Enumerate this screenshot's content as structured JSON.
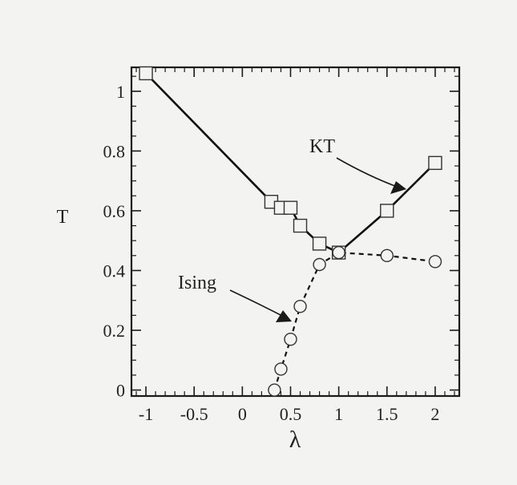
{
  "chart_data": {
    "type": "line",
    "xlabel": "λ",
    "ylabel": "T",
    "xlim": [
      -1.15,
      2.25
    ],
    "ylim": [
      -0.02,
      1.08
    ],
    "x_ticks": [
      -1,
      -0.5,
      0,
      0.5,
      1,
      1.5,
      2
    ],
    "x_tick_labels": [
      "-1",
      "-0.5",
      "0",
      "0.5",
      "1",
      "1.5",
      "2"
    ],
    "y_ticks": [
      0,
      0.2,
      0.4,
      0.6,
      0.8,
      1
    ],
    "y_tick_labels": [
      "0",
      "0.2",
      "0.4",
      "0.6",
      "0.8",
      "1"
    ],
    "series": [
      {
        "name": "KT",
        "marker": "square",
        "line_style": "solid",
        "x": [
          -1.0,
          0.3,
          0.4,
          0.5,
          0.6,
          0.8,
          1.0,
          1.5,
          2.0
        ],
        "y": [
          1.06,
          0.63,
          0.61,
          0.61,
          0.55,
          0.49,
          0.46,
          0.6,
          0.76
        ]
      },
      {
        "name": "Ising",
        "marker": "circle",
        "line_style": "dashed",
        "x": [
          0.333,
          0.4,
          0.5,
          0.6,
          0.8,
          1.0,
          1.5,
          2.0
        ],
        "y": [
          0.0,
          0.07,
          0.17,
          0.28,
          0.42,
          0.46,
          0.45,
          0.43
        ]
      }
    ],
    "annotations": [
      {
        "text": "KT",
        "series": "KT"
      },
      {
        "text": "Ising",
        "series": "Ising"
      }
    ],
    "grid": false,
    "minor_ticks": true
  }
}
